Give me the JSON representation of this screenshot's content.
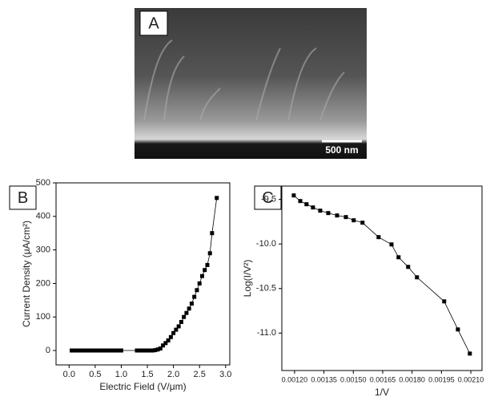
{
  "image_panel": {
    "label": "A",
    "scale_bar": "500 nm"
  },
  "chart_data": [
    {
      "type": "line",
      "panel_label": "B",
      "xlabel": "Electric Field (V/μm)",
      "ylabel": "Current Density (μA/cm²)",
      "x": [
        0.05,
        0.1,
        0.15,
        0.2,
        0.25,
        0.3,
        0.35,
        0.4,
        0.45,
        0.5,
        0.55,
        0.6,
        0.65,
        0.7,
        0.75,
        0.8,
        0.85,
        0.9,
        0.95,
        1.0,
        1.3,
        1.35,
        1.4,
        1.45,
        1.5,
        1.55,
        1.6,
        1.65,
        1.7,
        1.75,
        1.8,
        1.85,
        1.9,
        1.95,
        2.0,
        2.05,
        2.1,
        2.15,
        2.2,
        2.25,
        2.3,
        2.35,
        2.4,
        2.45,
        2.5,
        2.55,
        2.6,
        2.65,
        2.7,
        2.74,
        2.83
      ],
      "values": [
        0,
        0,
        0,
        0,
        0,
        0,
        0,
        0,
        0,
        0,
        0,
        0,
        0,
        0,
        0,
        0,
        0,
        0,
        0,
        0,
        0,
        0,
        0,
        0,
        0,
        0,
        0,
        1,
        3,
        6,
        15,
        22,
        30,
        40,
        52,
        62,
        72,
        85,
        100,
        112,
        125,
        140,
        160,
        180,
        200,
        222,
        240,
        255,
        290,
        350,
        455
      ],
      "color": "#000000",
      "xlim": [
        -0.25,
        3.08
      ],
      "ylim": [
        -43,
        500
      ],
      "xticks": [
        {
          "value": 0,
          "label": "0.0"
        },
        0.5,
        {
          "value": 1,
          "label": "1.0"
        },
        1.5,
        {
          "value": 2,
          "label": "2.0"
        },
        2.5,
        {
          "value": 3,
          "label": "3.0"
        }
      ],
      "yticks": [
        0,
        100,
        200,
        300,
        400,
        500
      ]
    },
    {
      "type": "line",
      "panel_label": "C",
      "xlabel": "1/V",
      "ylabel": "Log(I/V²)",
      "x": [
        0.001196,
        0.001229,
        0.001261,
        0.001294,
        0.001331,
        0.001372,
        0.001417,
        0.001462,
        0.001502,
        0.001547,
        0.001629,
        0.001695,
        0.001731,
        0.00178,
        0.001825,
        0.001964,
        0.002034,
        0.002095
      ],
      "values": [
        -9.455,
        -9.518,
        -9.554,
        -9.59,
        -9.626,
        -9.653,
        -9.68,
        -9.698,
        -9.734,
        -9.761,
        -9.923,
        -10.005,
        -10.149,
        -10.257,
        -10.374,
        -10.644,
        -10.959,
        -11.23
      ],
      "color": "#000000",
      "xlim": [
        0.001135,
        0.002157
      ],
      "ylim": [
        -11.42,
        -9.35
      ],
      "xticks": [
        {
          "value": 0.0012,
          "label": "0.00120"
        },
        {
          "value": 0.00135,
          "label": "0.00135"
        },
        {
          "value": 0.0015,
          "label": "0.00150"
        },
        {
          "value": 0.00165,
          "label": "0.00165"
        },
        {
          "value": 0.0018,
          "label": "0.00180"
        },
        {
          "value": 0.00195,
          "label": "0.00195"
        },
        {
          "value": 0.0021,
          "label": "0.00210"
        }
      ],
      "yticks": [
        -9.5,
        {
          "value": -10,
          "label": "-10.0"
        },
        {
          "value": -10.5,
          "label": "-10.5"
        },
        {
          "value": -11,
          "label": "-11.0"
        }
      ]
    }
  ]
}
